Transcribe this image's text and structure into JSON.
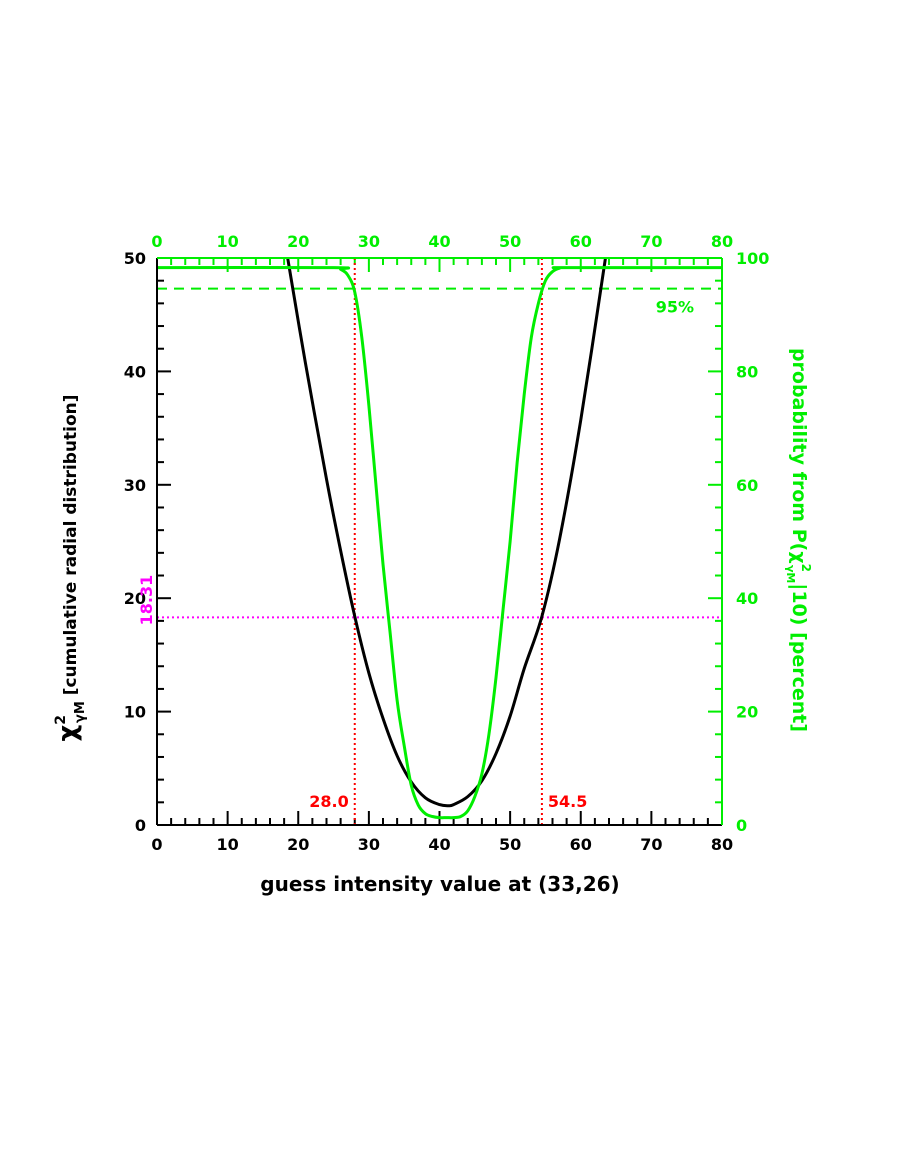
{
  "chart_data": {
    "type": "line",
    "xlabel": "guess intensity value at (33,26)",
    "ylabel_left_symbol": "χ",
    "ylabel_left_sup": "2",
    "ylabel_left_sub": "γM",
    "ylabel_left_rest": " [cumulative radial distribution]",
    "ylabel_right_prefix": "probability from P(χ",
    "ylabel_right_sup": "2",
    "ylabel_right_sub": "γM",
    "ylabel_right_rest": "|10) [percent]",
    "xlim": [
      0,
      80
    ],
    "ylim_left": [
      0,
      50
    ],
    "ylim_right": [
      0,
      100
    ],
    "x_ticks": [
      "0",
      "10",
      "20",
      "30",
      "40",
      "50",
      "60",
      "70",
      "80"
    ],
    "x_top_ticks": [
      "0",
      "10",
      "20",
      "30",
      "40",
      "50",
      "60",
      "70",
      "80"
    ],
    "y_left_ticks": [
      "0",
      "10",
      "20",
      "30",
      "40",
      "50"
    ],
    "y_right_ticks": [
      "0",
      "20",
      "40",
      "60",
      "80",
      "100"
    ],
    "series": [
      {
        "name": "chi-square",
        "axis": "left",
        "color": "#000000",
        "x": [
          18.5,
          21,
          24,
          26,
          28,
          30,
          32,
          34,
          36,
          38,
          40,
          41.25,
          42,
          44,
          46,
          48,
          50,
          52,
          54.5,
          57,
          60,
          63.5
        ],
        "y": [
          50.0,
          40.8,
          30.5,
          24.2,
          18.4,
          13.4,
          9.4,
          6.1,
          3.8,
          2.4,
          1.8,
          1.7,
          1.8,
          2.5,
          3.9,
          6.3,
          9.6,
          13.8,
          18.4,
          25.2,
          35.7,
          50.0
        ]
      },
      {
        "name": "probability",
        "axis": "right",
        "color": "#00ee00",
        "x": [
          0,
          25,
          26,
          27,
          28,
          29,
          30,
          31,
          32,
          33,
          34,
          35,
          36,
          37,
          38,
          39,
          40,
          41,
          42,
          43,
          44,
          45,
          46,
          47,
          48,
          49,
          50,
          51,
          52,
          53,
          54,
          55,
          56,
          57,
          58,
          80
        ],
        "y": [
          98.3,
          98.3,
          98.0,
          97.0,
          94.0,
          86.0,
          74.0,
          60.0,
          46.0,
          34.0,
          22.0,
          14.0,
          7.0,
          3.5,
          2.0,
          1.5,
          1.3,
          1.3,
          1.3,
          1.5,
          2.5,
          5.0,
          9.0,
          16.0,
          26.0,
          38.0,
          50.0,
          64.0,
          76.0,
          86.0,
          92.0,
          96.0,
          97.6,
          98.2,
          98.3,
          98.3
        ]
      }
    ],
    "reference_lines": [
      {
        "kind": "horizontal",
        "axis": "left",
        "value": 18.31,
        "color": "#ff00ff",
        "style": "dotted",
        "label": "18.31"
      },
      {
        "kind": "horizontal",
        "axis": "right",
        "value": 94.6,
        "color": "#00ee00",
        "style": "dashed",
        "label": "95%"
      },
      {
        "kind": "vertical",
        "value": 28.0,
        "color": "#ff0000",
        "style": "dotted",
        "label": "28.0"
      },
      {
        "kind": "vertical",
        "value": 54.5,
        "color": "#ff0000",
        "style": "dotted",
        "label": "54.5"
      }
    ],
    "colors": {
      "primary": "#000000",
      "secondary": "#00ee00",
      "bounds": "#ff0000",
      "threshold": "#ff00ff"
    }
  }
}
